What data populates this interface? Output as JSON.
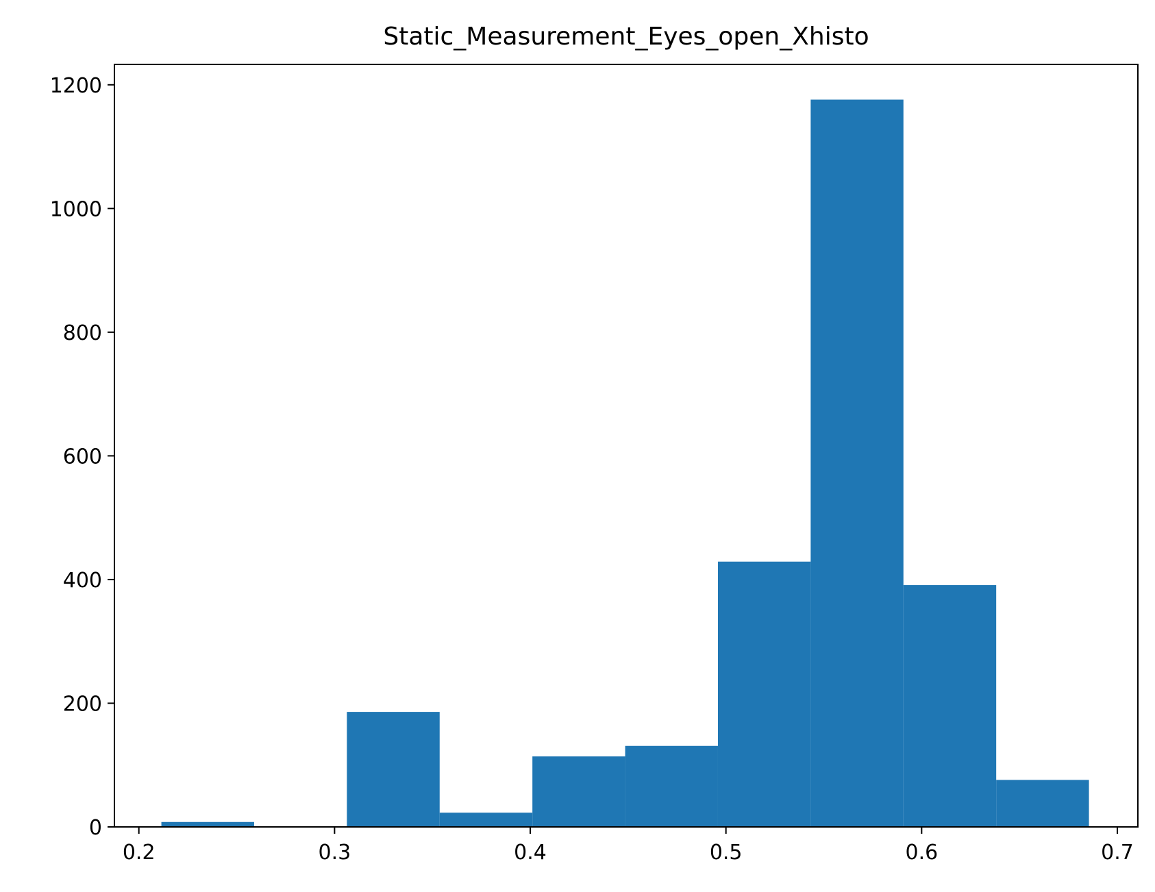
{
  "chart_data": {
    "type": "bar",
    "title": "Static_Measurement_Eyes_open_Xhisto",
    "xlabel": "",
    "ylabel": "",
    "xlim": [
      0.1875,
      0.7105
    ],
    "ylim": [
      0,
      1233
    ],
    "xticks": [
      "0.2",
      "0.3",
      "0.4",
      "0.5",
      "0.6",
      "0.7"
    ],
    "yticks": [
      "0",
      "200",
      "400",
      "600",
      "800",
      "1000",
      "1200"
    ],
    "bin_edges": [
      0.2115,
      0.2589,
      0.3063,
      0.3537,
      0.4011,
      0.4485,
      0.4959,
      0.5433,
      0.5907,
      0.6381,
      0.6855
    ],
    "counts": [
      8,
      0,
      186,
      23,
      114,
      131,
      429,
      1176,
      391,
      76
    ],
    "bar_color": "#1f77b4",
    "grid": false
  }
}
